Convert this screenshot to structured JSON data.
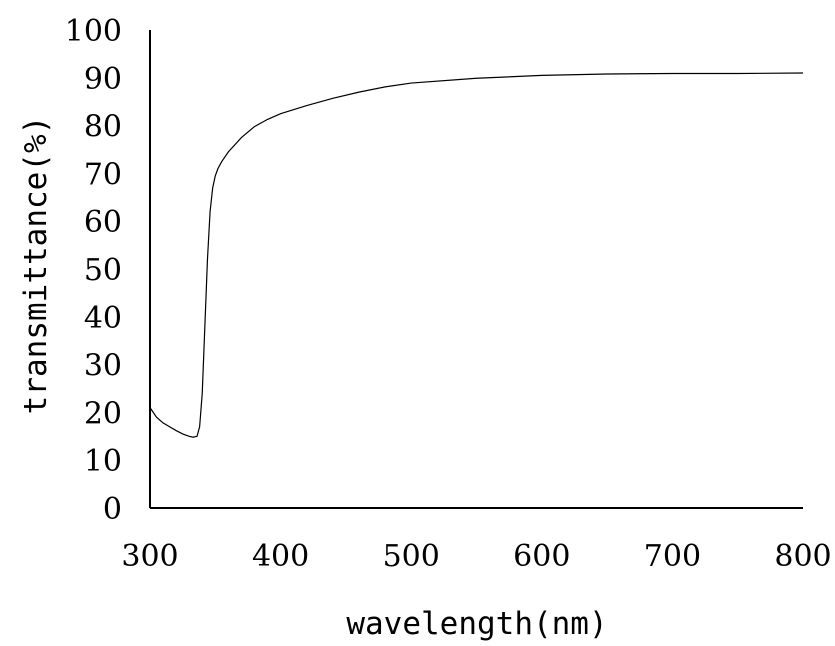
{
  "chart_data": {
    "type": "line",
    "title": "",
    "xlabel": "wavelength(nm)",
    "ylabel": "transmittance(%)",
    "xlim": [
      300,
      800
    ],
    "ylim": [
      0,
      100
    ],
    "x_ticks": [
      "300",
      "400",
      "500",
      "600",
      "700",
      "800"
    ],
    "y_ticks": [
      "0",
      "10",
      "20",
      "30",
      "40",
      "50",
      "60",
      "70",
      "80",
      "90",
      "100"
    ],
    "grid": false,
    "legend": "none",
    "line_color": "#000000",
    "series": [
      {
        "x": [
          300,
          305,
          310,
          315,
          320,
          325,
          330,
          333,
          336,
          338,
          340,
          342,
          344,
          346,
          348,
          350,
          352,
          355,
          360,
          370,
          380,
          390,
          400,
          420,
          440,
          460,
          480,
          500,
          550,
          600,
          650,
          700,
          750,
          800
        ],
        "values": [
          21,
          19,
          17.8,
          17,
          16.2,
          15.5,
          15,
          14.8,
          15,
          17,
          24,
          38,
          52,
          62,
          67,
          69.5,
          71,
          72.5,
          74.5,
          77.5,
          79.8,
          81.3,
          82.5,
          84.2,
          85.7,
          87,
          88.1,
          88.9,
          89.9,
          90.5,
          90.8,
          90.9,
          90.9,
          91
        ]
      }
    ]
  }
}
